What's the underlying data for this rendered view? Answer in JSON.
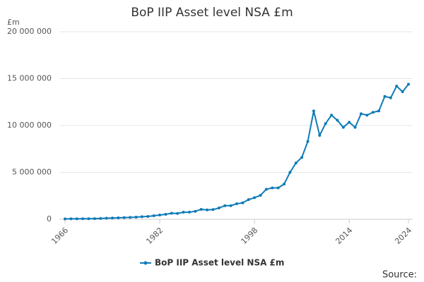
{
  "chart_data": {
    "type": "line",
    "title": "BoP IIP Asset level NSA £m",
    "y_unit": "£m",
    "source": "Source:",
    "x": [
      1966,
      1967,
      1968,
      1969,
      1970,
      1971,
      1972,
      1973,
      1974,
      1975,
      1976,
      1977,
      1978,
      1979,
      1980,
      1981,
      1982,
      1983,
      1984,
      1985,
      1986,
      1987,
      1988,
      1989,
      1990,
      1991,
      1992,
      1993,
      1994,
      1995,
      1996,
      1997,
      1998,
      1999,
      2000,
      2001,
      2002,
      2003,
      2004,
      2005,
      2006,
      2007,
      2008,
      2009,
      2010,
      2011,
      2012,
      2013,
      2014,
      2015,
      2016,
      2017,
      2018,
      2019,
      2020,
      2021,
      2022,
      2023,
      2024
    ],
    "series": [
      {
        "name": "BoP IIP Asset level NSA £m",
        "color": "#0f7bb8",
        "values": [
          40000,
          45000,
          50000,
          55000,
          60000,
          70000,
          85000,
          110000,
          130000,
          150000,
          180000,
          200000,
          230000,
          270000,
          300000,
          380000,
          450000,
          530000,
          640000,
          620000,
          750000,
          760000,
          850000,
          1050000,
          1000000,
          1030000,
          1200000,
          1450000,
          1450000,
          1650000,
          1750000,
          2100000,
          2300000,
          2550000,
          3200000,
          3350000,
          3350000,
          3750000,
          5000000,
          6000000,
          6600000,
          8300000,
          11550000,
          8950000,
          10200000,
          11100000,
          10550000,
          9800000,
          10350000,
          9800000,
          11250000,
          11100000,
          11400000,
          11550000,
          13100000,
          12950000,
          14200000,
          13600000,
          14400000
        ]
      }
    ],
    "xlim": [
      1966,
      2024
    ],
    "xticks": [
      1966,
      1982,
      1998,
      2014,
      2024
    ],
    "ylim": [
      0,
      20000000
    ],
    "yticks": [
      0,
      {
        "value": 5000000,
        "label": "5 000 000"
      },
      {
        "value": 10000000,
        "label": "10 000 000"
      },
      {
        "value": 15000000,
        "label": "15 000 000"
      },
      {
        "value": 20000000,
        "label": "20 000 000"
      }
    ],
    "grid": true,
    "legend": "bottom"
  }
}
